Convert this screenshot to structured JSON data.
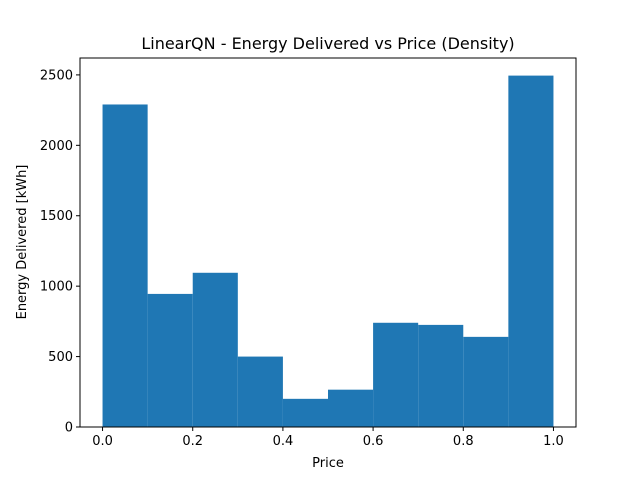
{
  "chart_data": {
    "type": "bar",
    "title": "LinearQN - Energy Delivered vs Price (Density)",
    "xlabel": "Price",
    "ylabel": "Energy Delivered [kWh]",
    "bin_edges": [
      0.0,
      0.1,
      0.2,
      0.3,
      0.4,
      0.5,
      0.6,
      0.7,
      0.8,
      0.9,
      1.0
    ],
    "values": [
      2290,
      945,
      1095,
      500,
      200,
      265,
      740,
      725,
      640,
      2495
    ],
    "xlim": [
      -0.05,
      1.05
    ],
    "ylim": [
      0,
      2620
    ],
    "x_ticks": [
      {
        "value": 0.0,
        "label": "0.0"
      },
      {
        "value": 0.2,
        "label": "0.2"
      },
      {
        "value": 0.4,
        "label": "0.4"
      },
      {
        "value": 0.6,
        "label": "0.6"
      },
      {
        "value": 0.8,
        "label": "0.8"
      },
      {
        "value": 1.0,
        "label": "1.0"
      }
    ],
    "y_ticks": [
      {
        "value": 0,
        "label": "0"
      },
      {
        "value": 500,
        "label": "500"
      },
      {
        "value": 1000,
        "label": "1000"
      },
      {
        "value": 1500,
        "label": "1500"
      },
      {
        "value": 2000,
        "label": "2000"
      },
      {
        "value": 2500,
        "label": "2500"
      }
    ],
    "grid": false,
    "legend": "none",
    "bar_color": "#1f77b4"
  }
}
